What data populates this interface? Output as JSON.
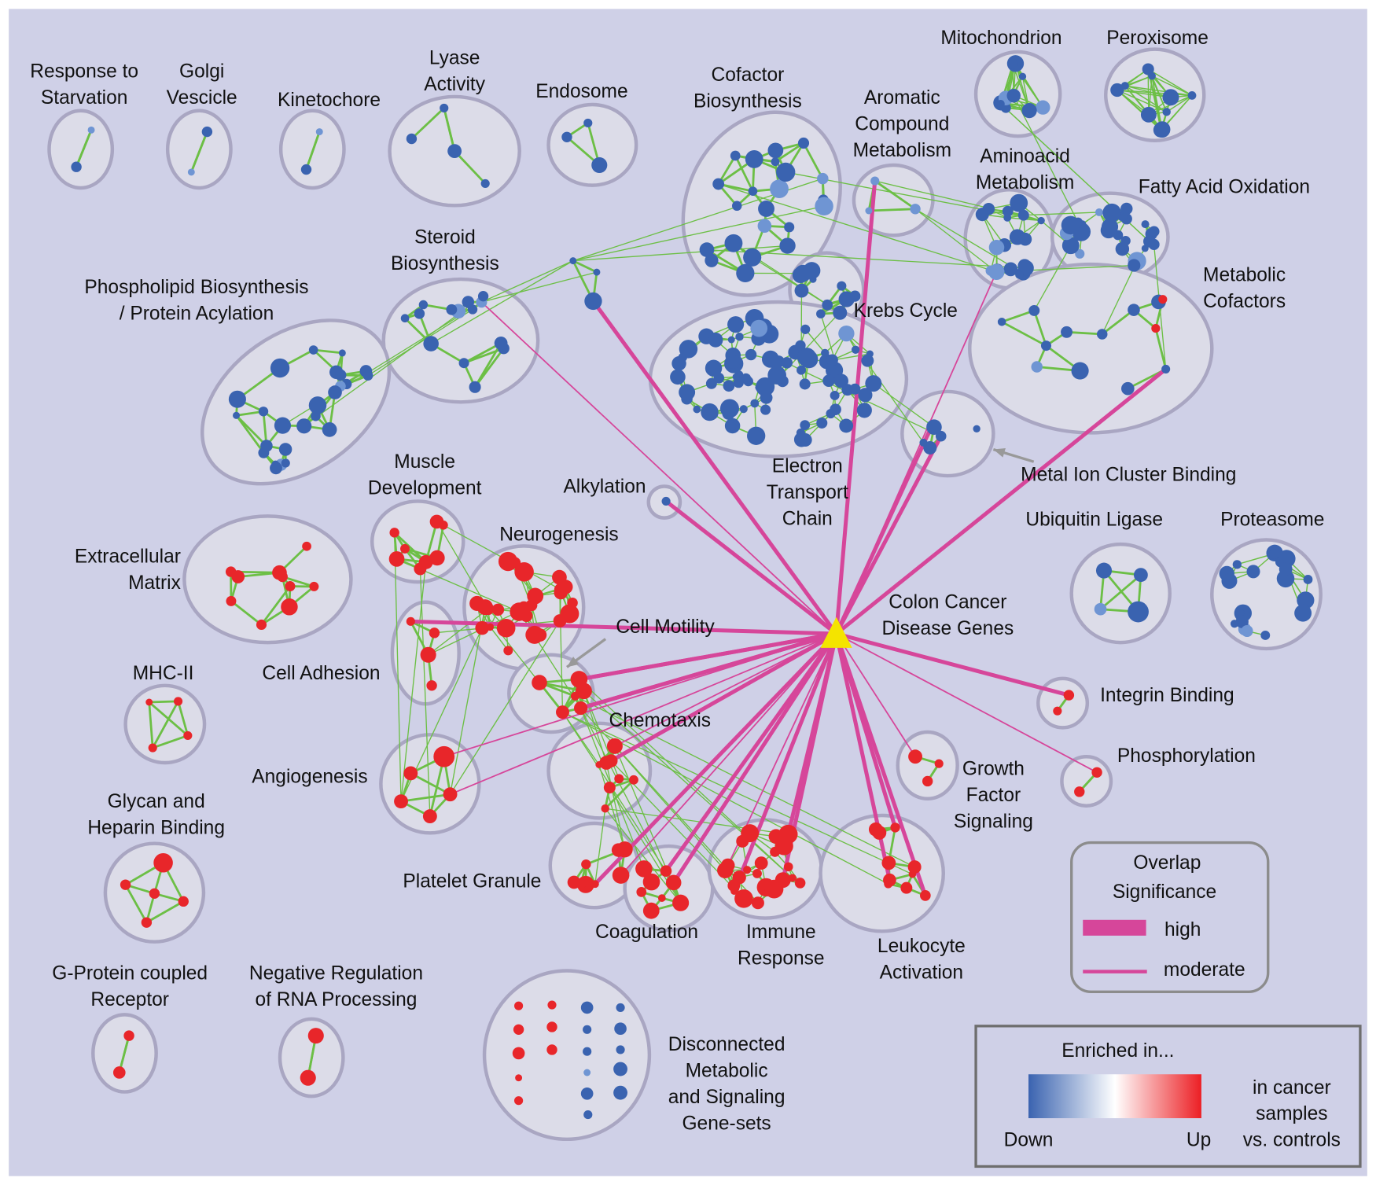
{
  "colors": {
    "background": "#cfd0e7",
    "down": "#3a63b0",
    "down_light": "#6f95d3",
    "up": "#e8262a",
    "similarity_edge": "#6cbf45",
    "overlap_edge": "#d6469a",
    "disease_node": "#f4e400"
  },
  "disease_node": {
    "label": [
      "Colon Cancer",
      "Disease Genes"
    ],
    "shape": "triangle"
  },
  "clusters": [
    {
      "label": [
        "Response to",
        "Starvation"
      ],
      "enriched": "down",
      "links": []
    },
    {
      "label": [
        "Golgi",
        "Vescicle"
      ],
      "enriched": "down",
      "links": []
    },
    {
      "label": [
        "Kinetochore"
      ],
      "enriched": "down",
      "links": []
    },
    {
      "label": [
        "Lyase",
        "Activity"
      ],
      "enriched": "down",
      "links": []
    },
    {
      "label": [
        "Endosome"
      ],
      "enriched": "down",
      "links": []
    },
    {
      "label": [
        "Cofactor",
        "Biosynthesis"
      ],
      "enriched": "down",
      "links": []
    },
    {
      "label": [
        "Aromatic",
        "Compound",
        "Metabolism"
      ],
      "enriched": "down",
      "links": [
        "high"
      ]
    },
    {
      "label": [
        "Mitochondrion"
      ],
      "enriched": "down",
      "links": []
    },
    {
      "label": [
        "Peroxisome"
      ],
      "enriched": "down",
      "links": []
    },
    {
      "label": [
        "Aminoacid",
        "Metabolism"
      ],
      "enriched": "down",
      "links": [
        "moderate"
      ]
    },
    {
      "label": [
        "Fatty Acid Oxidation"
      ],
      "enriched": "down",
      "links": []
    },
    {
      "label": [
        "Metabolic",
        "Cofactors"
      ],
      "enriched": "down",
      "links": [
        "high"
      ]
    },
    {
      "label": [
        "Krebs Cycle"
      ],
      "enriched": "down",
      "links": []
    },
    {
      "label": [
        "Electron",
        "Transport",
        "Chain"
      ],
      "enriched": "down",
      "links": []
    },
    {
      "label": [
        "Steroid",
        "Biosynthesis"
      ],
      "enriched": "down",
      "links": [
        "moderate"
      ]
    },
    {
      "label": [
        "Phospholipid Biosynthesis",
        "/ Protein Acylation"
      ],
      "enriched": "down",
      "links": []
    },
    {
      "label": [
        "Metal Ion Cluster Binding"
      ],
      "enriched": "down",
      "links": [
        "high",
        "high"
      ]
    },
    {
      "label": [
        "Alkylation"
      ],
      "enriched": "down",
      "links": [
        "high"
      ]
    },
    {
      "label": [
        "Muscle",
        "Development"
      ],
      "enriched": "up",
      "links": []
    },
    {
      "label": [
        "Extracellular",
        "Matrix"
      ],
      "enriched": "up",
      "links": []
    },
    {
      "label": [
        "Neurogenesis"
      ],
      "enriched": "up",
      "links": []
    },
    {
      "label": [
        "Cell Adhesion"
      ],
      "enriched": "up",
      "links": [
        "high"
      ]
    },
    {
      "label": [
        "Cell Motility"
      ],
      "enriched": "up",
      "links": [
        "high",
        "high",
        "high",
        "high"
      ]
    },
    {
      "label": [
        "MHC-II"
      ],
      "enriched": "up",
      "links": []
    },
    {
      "label": [
        "Chemotaxis"
      ],
      "enriched": "up",
      "links": [
        "high",
        "moderate"
      ]
    },
    {
      "label": [
        "Angiogenesis"
      ],
      "enriched": "up",
      "links": [
        "moderate",
        "moderate"
      ]
    },
    {
      "label": [
        "Growth",
        "Factor",
        "Signaling"
      ],
      "enriched": "up",
      "links": [
        "moderate"
      ]
    },
    {
      "label": [
        "Integrin Binding"
      ],
      "enriched": "up",
      "links": [
        "high"
      ]
    },
    {
      "label": [
        "Phosphorylation"
      ],
      "enriched": "up",
      "links": [
        "moderate"
      ]
    },
    {
      "label": [
        "Ubiquitin Ligase"
      ],
      "enriched": "down",
      "links": []
    },
    {
      "label": [
        "Proteasome"
      ],
      "enriched": "down",
      "links": []
    },
    {
      "label": [
        "Glycan and",
        "Heparin Binding"
      ],
      "enriched": "up",
      "links": []
    },
    {
      "label": [
        "Platelet Granule"
      ],
      "enriched": "up",
      "links": [
        "high",
        "moderate"
      ]
    },
    {
      "label": [
        "Coagulation"
      ],
      "enriched": "up",
      "links": [
        "high",
        "high"
      ]
    },
    {
      "label": [
        "Immune",
        "Response"
      ],
      "enriched": "up",
      "links": [
        "high",
        "high",
        "high",
        "moderate"
      ]
    },
    {
      "label": [
        "Leukocyte",
        "Activation"
      ],
      "enriched": "up",
      "links": [
        "high",
        "high",
        "high",
        "moderate"
      ]
    },
    {
      "label": [
        "G-Protein coupled",
        "Receptor"
      ],
      "enriched": "up",
      "links": []
    },
    {
      "label": [
        "Negative Regulation",
        "of RNA Processing"
      ],
      "enriched": "up",
      "links": []
    },
    {
      "label": [
        "Disconnected",
        "Metabolic",
        "and Signaling",
        "Gene-sets"
      ],
      "enriched": "mixed",
      "links": []
    },
    {
      "label": [],
      "enriched": "down",
      "links": [
        "high"
      ]
    }
  ],
  "legend_overlap": {
    "title": [
      "Overlap",
      "Significance"
    ],
    "items": [
      {
        "label": "high"
      },
      {
        "label": "moderate"
      }
    ]
  },
  "legend_enrichment": {
    "title": "Enriched in...",
    "low_label": "Down",
    "high_label": "Up",
    "note": [
      "in cancer",
      "samples",
      "vs. controls"
    ]
  }
}
